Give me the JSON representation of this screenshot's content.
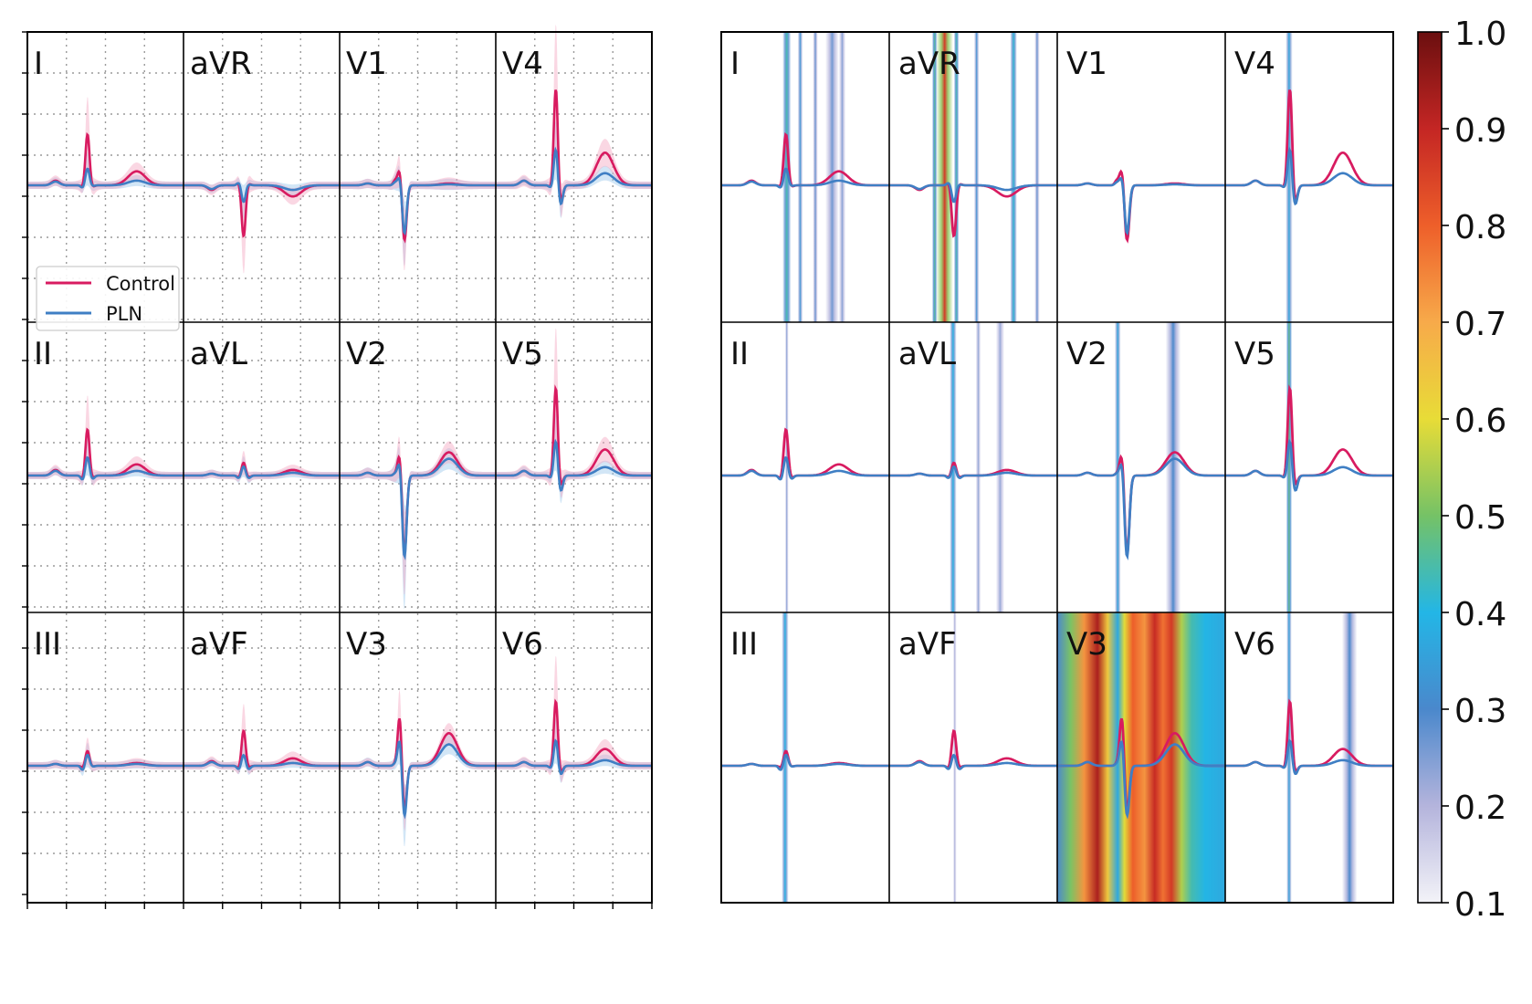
{
  "chart_data": [
    {
      "type": "line",
      "panel": "left",
      "title": "",
      "xlabel": "",
      "ylabel": "",
      "grid": true,
      "legend_position": "lower-left of lead I panel",
      "leads": [
        [
          "I",
          "aVR",
          "V1",
          "V4"
        ],
        [
          "II",
          "aVL",
          "V2",
          "V5"
        ],
        [
          "III",
          "aVF",
          "V3",
          "V6"
        ]
      ],
      "series": [
        {
          "name": "Control",
          "color": "#d81b60",
          "band_color": "#f4a6c0"
        },
        {
          "name": "PLN",
          "color": "#3f7fc4",
          "band_color": "#9cc8ec"
        }
      ]
    },
    {
      "type": "heatmap",
      "panel": "right",
      "title": "",
      "leads": [
        [
          "I",
          "aVR",
          "V1",
          "V4"
        ],
        [
          "II",
          "aVL",
          "V2",
          "V5"
        ],
        [
          "III",
          "aVF",
          "V3",
          "V6"
        ]
      ],
      "colorbar": {
        "min": 0.1,
        "max": 1.0,
        "ticks": [
          "1.0",
          "0.9",
          "0.8",
          "0.7",
          "0.6",
          "0.5",
          "0.4",
          "0.3",
          "0.2",
          "0.1"
        ],
        "colors": [
          "#f3f3f8",
          "#b4b4dc",
          "#4a88cc",
          "#23b6e6",
          "#75c266",
          "#e8dc37",
          "#f7aa4a",
          "#ee5f2a",
          "#c42624",
          "#6b0f0f"
        ]
      }
    }
  ],
  "legend": {
    "control_label": "Control",
    "pln_label": "PLN"
  }
}
